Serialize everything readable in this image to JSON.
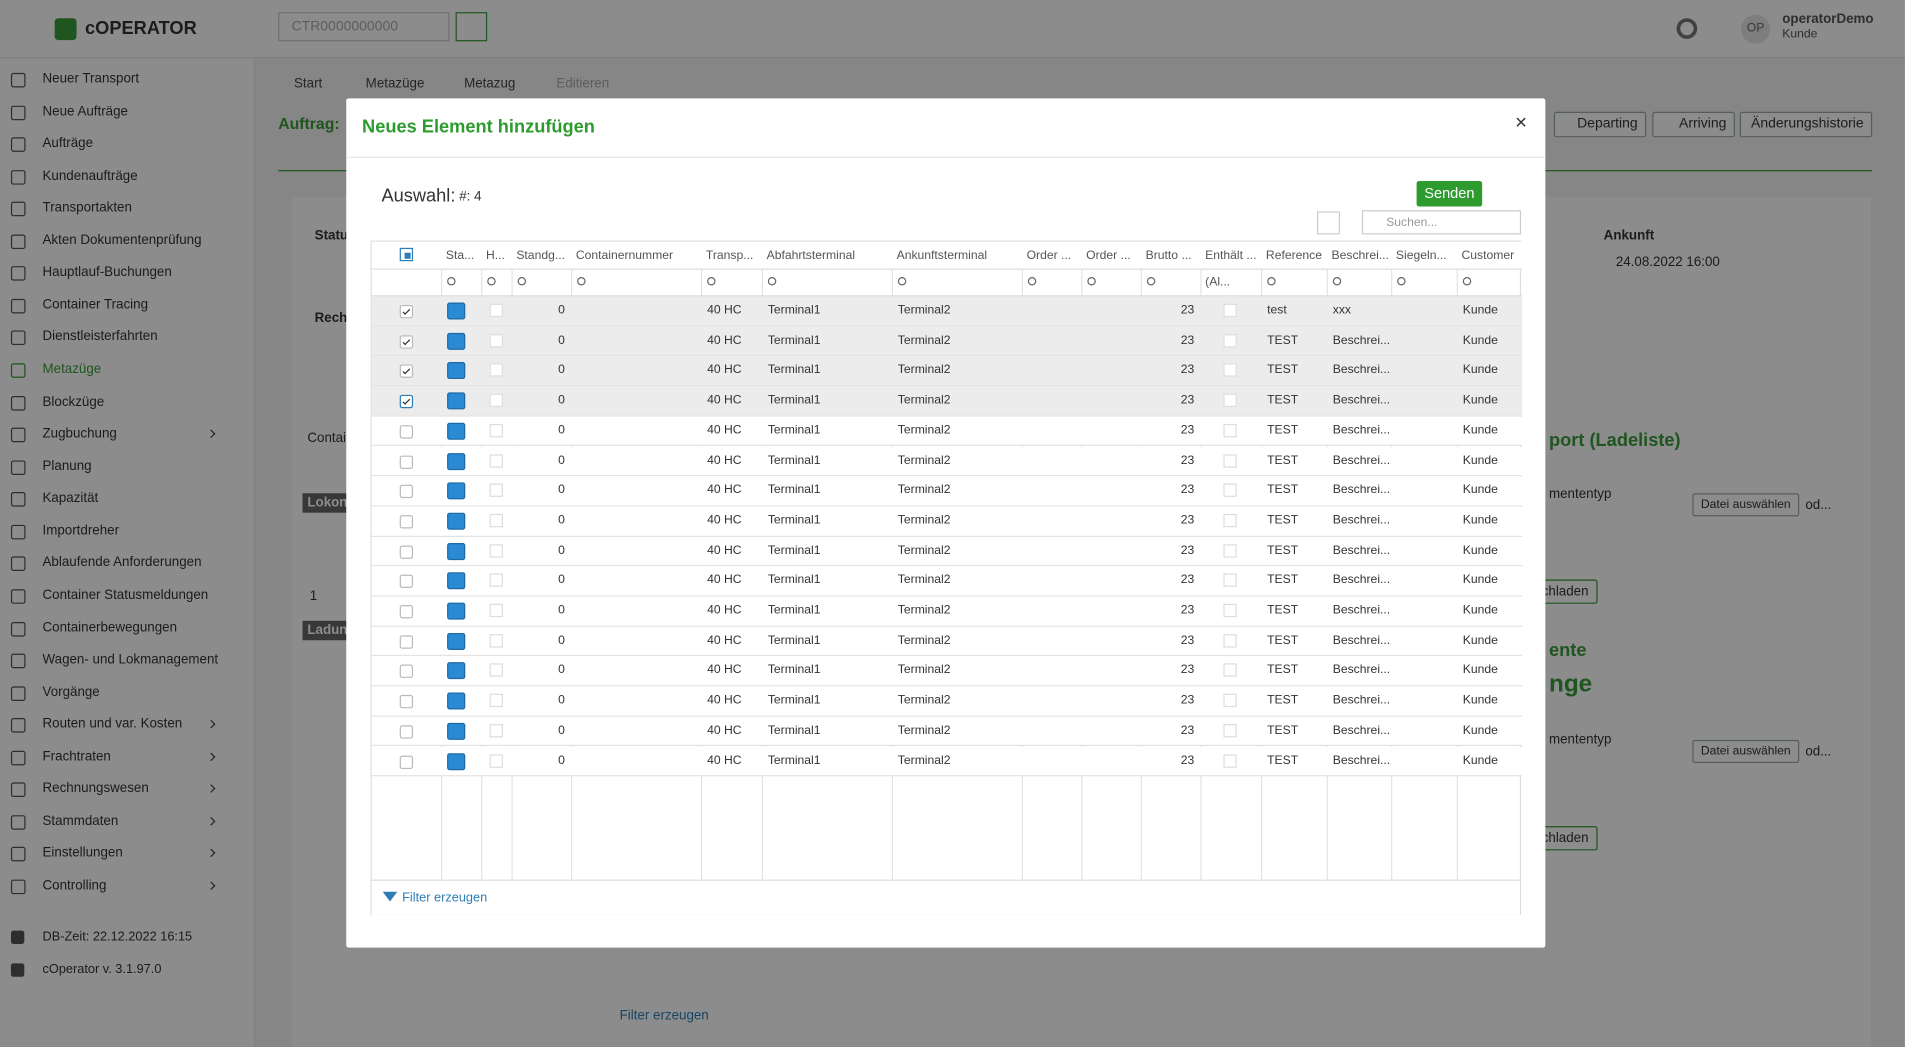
{
  "app": {
    "logo": "cOPERATOR",
    "search_placeholder": "CTR0000000000",
    "user": {
      "initials": "OP",
      "name": "operatorDemo",
      "role": "Kunde"
    }
  },
  "sidebar": {
    "items": [
      {
        "label": "Neuer Transport"
      },
      {
        "label": "Neue Aufträge"
      },
      {
        "label": "Aufträge"
      },
      {
        "label": "Kundenaufträge"
      },
      {
        "label": "Transportakten"
      },
      {
        "label": "Akten Dokumentenprüfung"
      },
      {
        "label": "Hauptlauf-Buchungen"
      },
      {
        "label": "Container Tracing"
      },
      {
        "label": "Dienstleisterfahrten"
      },
      {
        "label": "Metazüge",
        "active": true
      },
      {
        "label": "Blockzüge"
      },
      {
        "label": "Zugbuchung",
        "submenu": true
      },
      {
        "label": "Planung"
      },
      {
        "label": "Kapazität"
      },
      {
        "label": "Importdreher"
      },
      {
        "label": "Ablaufende Anforderungen"
      },
      {
        "label": "Container Statusmeldungen"
      },
      {
        "label": "Containerbewegungen"
      },
      {
        "label": "Wagen- und Lokmanagement"
      },
      {
        "label": "Vorgänge"
      },
      {
        "label": "Routen und var. Kosten",
        "submenu": true
      },
      {
        "label": "Frachtraten",
        "submenu": true
      },
      {
        "label": "Rechnungswesen",
        "submenu": true
      },
      {
        "label": "Stammdaten",
        "submenu": true
      },
      {
        "label": "Einstellungen",
        "submenu": true
      },
      {
        "label": "Controlling",
        "submenu": true
      }
    ],
    "footer": [
      "DB-Zeit: 22.12.2022 16:15",
      "cOperator v. 3.1.97.0"
    ]
  },
  "page": {
    "breadcrumbs": [
      "Start",
      "Metazüge",
      "Metazug",
      "Editieren"
    ],
    "heading": "Auftrag:",
    "buttons": [
      "Departing",
      "Arriving",
      "Änderungshistorie"
    ],
    "fragments": {
      "status": "Statu",
      "rech": "Rech",
      "contai": "Contai",
      "lokon": "Lokon",
      "one": "1",
      "ladun": "Ladun",
      "ankunft": "Ankunft",
      "arrival_date": "24.08.2022 16:00",
      "upload_title": "port (Ladeliste)",
      "doctype_1": "mententyp",
      "file_1": "Datei auswählen",
      "or_1": "od...",
      "upload_1": "chladen",
      "docs_title": "ente",
      "docs_sub": "nge",
      "doctype_2": "mententyp",
      "file_2": "Datei auswählen",
      "or_2": "od...",
      "upload_2": "chladen",
      "filter": "Filter erzeugen"
    }
  },
  "modal": {
    "title": "Neues Element hinzufügen",
    "close": "×",
    "selection_label": "Auswahl:",
    "selection_count": "#: 4",
    "send_button": "Senden",
    "search_placeholder": "Suchen...",
    "grid": {
      "columns": [
        "Sta...",
        "H...",
        "Standg...",
        "Containernummer",
        "Transp...",
        "Abfahrtsterminal",
        "Ankunftsterminal",
        "Order ...",
        "Order ...",
        "Brutto ...",
        "Enthält ...",
        "Reference",
        "Beschrei...",
        "Siegeln...",
        "Customer"
      ],
      "filter_all_label": "(Al...",
      "rows": [
        {
          "selected": true,
          "standg": 0,
          "transp": "40 HC",
          "from": "Terminal1",
          "to": "Terminal2",
          "brutto": 23,
          "reference": "test",
          "description": "xxx",
          "customer": "Kunde"
        },
        {
          "selected": true,
          "standg": 0,
          "transp": "40 HC",
          "from": "Terminal1",
          "to": "Terminal2",
          "brutto": 23,
          "reference": "TEST",
          "description": "Beschrei...",
          "customer": "Kunde"
        },
        {
          "selected": true,
          "standg": 0,
          "transp": "40 HC",
          "from": "Terminal1",
          "to": "Terminal2",
          "brutto": 23,
          "reference": "TEST",
          "description": "Beschrei...",
          "customer": "Kunde"
        },
        {
          "selected": true,
          "standg": 0,
          "transp": "40 HC",
          "from": "Terminal1",
          "to": "Terminal2",
          "brutto": 23,
          "reference": "TEST",
          "description": "Beschrei...",
          "customer": "Kunde"
        },
        {
          "selected": false,
          "standg": 0,
          "transp": "40 HC",
          "from": "Terminal1",
          "to": "Terminal2",
          "brutto": 23,
          "reference": "TEST",
          "description": "Beschrei...",
          "customer": "Kunde"
        },
        {
          "selected": false,
          "standg": 0,
          "transp": "40 HC",
          "from": "Terminal1",
          "to": "Terminal2",
          "brutto": 23,
          "reference": "TEST",
          "description": "Beschrei...",
          "customer": "Kunde"
        },
        {
          "selected": false,
          "standg": 0,
          "transp": "40 HC",
          "from": "Terminal1",
          "to": "Terminal2",
          "brutto": 23,
          "reference": "TEST",
          "description": "Beschrei...",
          "customer": "Kunde"
        },
        {
          "selected": false,
          "standg": 0,
          "transp": "40 HC",
          "from": "Terminal1",
          "to": "Terminal2",
          "brutto": 23,
          "reference": "TEST",
          "description": "Beschrei...",
          "customer": "Kunde"
        },
        {
          "selected": false,
          "standg": 0,
          "transp": "40 HC",
          "from": "Terminal1",
          "to": "Terminal2",
          "brutto": 23,
          "reference": "TEST",
          "description": "Beschrei...",
          "customer": "Kunde"
        },
        {
          "selected": false,
          "standg": 0,
          "transp": "40 HC",
          "from": "Terminal1",
          "to": "Terminal2",
          "brutto": 23,
          "reference": "TEST",
          "description": "Beschrei...",
          "customer": "Kunde"
        },
        {
          "selected": false,
          "standg": 0,
          "transp": "40 HC",
          "from": "Terminal1",
          "to": "Terminal2",
          "brutto": 23,
          "reference": "TEST",
          "description": "Beschrei...",
          "customer": "Kunde"
        },
        {
          "selected": false,
          "standg": 0,
          "transp": "40 HC",
          "from": "Terminal1",
          "to": "Terminal2",
          "brutto": 23,
          "reference": "TEST",
          "description": "Beschrei...",
          "customer": "Kunde"
        },
        {
          "selected": false,
          "standg": 0,
          "transp": "40 HC",
          "from": "Terminal1",
          "to": "Terminal2",
          "brutto": 23,
          "reference": "TEST",
          "description": "Beschrei...",
          "customer": "Kunde"
        },
        {
          "selected": false,
          "standg": 0,
          "transp": "40 HC",
          "from": "Terminal1",
          "to": "Terminal2",
          "brutto": 23,
          "reference": "TEST",
          "description": "Beschrei...",
          "customer": "Kunde"
        },
        {
          "selected": false,
          "standg": 0,
          "transp": "40 HC",
          "from": "Terminal1",
          "to": "Terminal2",
          "brutto": 23,
          "reference": "TEST",
          "description": "Beschrei...",
          "customer": "Kunde"
        },
        {
          "selected": false,
          "standg": 0,
          "transp": "40 HC",
          "from": "Terminal1",
          "to": "Terminal2",
          "brutto": 23,
          "reference": "TEST",
          "description": "Beschrei...",
          "customer": "Kunde"
        }
      ]
    },
    "filter_link": "Filter erzeugen"
  }
}
